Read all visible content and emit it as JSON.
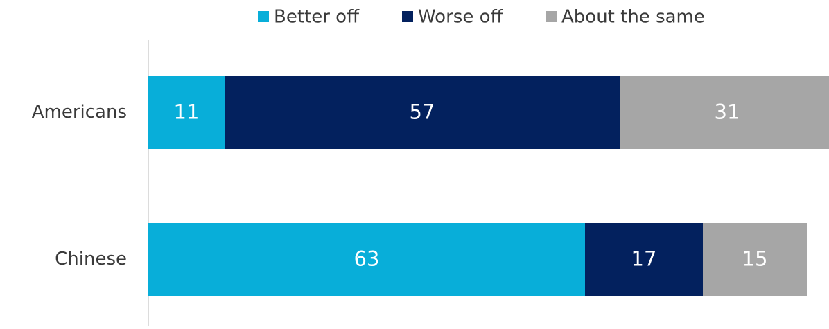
{
  "chart_data": {
    "type": "stacked-bar-horizontal",
    "categories": [
      "Americans",
      "Chinese"
    ],
    "series": [
      {
        "name": "Better off",
        "color": "#08aed9",
        "values": [
          11,
          63
        ]
      },
      {
        "name": "Worse off",
        "color": "#03215e",
        "values": [
          57,
          17
        ]
      },
      {
        "name": "About the same",
        "color": "#a6a6a6",
        "values": [
          31,
          15
        ]
      }
    ],
    "legend": "top"
  }
}
